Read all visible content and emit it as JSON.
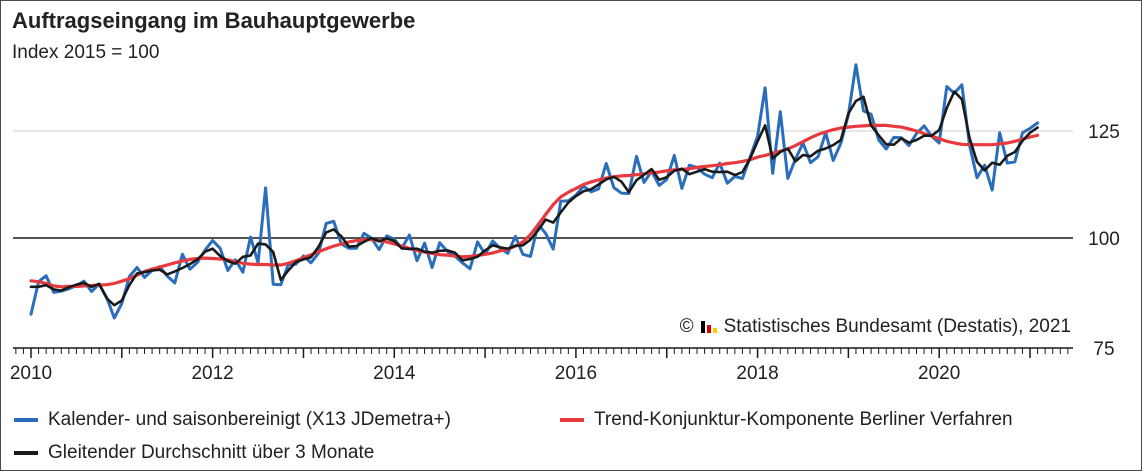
{
  "title": "Auftragseingang im Bauhauptgewerbe",
  "subtitle": "Index 2015 = 100",
  "copyright": {
    "symbol": "©",
    "text": "Statistisches Bundesamt (Destatis), 2021",
    "logo_icon": "destatis-logo-icon",
    "logo_colors": [
      "#000000",
      "#dd0000",
      "#ffcc00"
    ]
  },
  "chart_data": {
    "type": "line",
    "x_start": "2010-01",
    "x_step": "month",
    "x_ticks": [
      "2010",
      "2012",
      "2014",
      "2016",
      "2018",
      "2020"
    ],
    "xlim": [
      "2010-01",
      "2020-12"
    ],
    "y_ticks": [
      75,
      100,
      125
    ],
    "ylim": [
      75,
      145
    ],
    "reference_line": 100,
    "grid": "horizontal",
    "legend_position": "bottom",
    "series": [
      {
        "name": "Kalender- und saisonbereinigt (X13 JDemetra+)",
        "color": "#2a6ebb",
        "values": [
          82.2,
          89.8,
          91.2,
          87.3,
          87.6,
          88.1,
          88.9,
          89.9,
          87.5,
          89.2,
          86.1,
          81.3,
          84.7,
          91.0,
          93.1,
          90.8,
          92.4,
          93.3,
          91.1,
          89.5,
          96.2,
          92.7,
          94.3,
          97.2,
          99.4,
          97.6,
          92.4,
          94.9,
          92.0,
          100.2,
          94.2,
          111.7,
          89.2,
          89.1,
          93.8,
          93.9,
          95.8,
          94.2,
          96.5,
          103.4,
          103.9,
          98.6,
          97.6,
          97.6,
          101.1,
          99.9,
          97.3,
          100.5,
          99.7,
          97.6,
          100.7,
          94.7,
          98.8,
          93.1,
          98.9,
          96.9,
          95.8,
          94.2,
          92.8,
          99.1,
          96.2,
          99.3,
          97.6,
          96.4,
          100.4,
          96.2,
          95.7,
          103.2,
          101.1,
          97.4,
          108.6,
          108.7,
          110.0,
          112.1,
          110.8,
          111.5,
          117.4,
          111.8,
          110.5,
          110.4,
          119.1,
          113.0,
          115.6,
          112.3,
          113.7,
          119.3,
          111.6,
          117.0,
          116.5,
          114.9,
          114.1,
          117.5,
          112.8,
          114.4,
          113.9,
          118.8,
          123.8,
          135.1,
          115.1,
          129.5,
          113.9,
          118.4,
          122.2,
          117.6,
          119.0,
          124.6,
          118.1,
          122.1,
          128.8,
          140.5,
          129.7,
          128.9,
          122.9,
          120.8,
          123.5,
          123.4,
          121.6,
          124.4,
          126.2,
          123.8,
          122.2,
          135.4,
          133.8,
          135.8,
          121.7,
          114.1,
          117.0,
          111.2,
          124.6,
          117.5,
          117.8,
          124.6,
          125.6,
          126.9
        ]
      },
      {
        "name": "Gleitender Durchschnitt über 3 Monate",
        "color": "#1a1a1a",
        "values": [
          88.6,
          88.6,
          89.0,
          88.0,
          87.7,
          88.5,
          89.1,
          89.5,
          88.6,
          89.3,
          85.9,
          84.3,
          85.4,
          89.0,
          91.7,
          92.0,
          92.4,
          92.6,
          91.5,
          92.2,
          93.0,
          93.9,
          95.0,
          96.8,
          97.5,
          95.8,
          94.6,
          94.0,
          95.6,
          95.9,
          98.7,
          98.5,
          96.7,
          90.2,
          92.4,
          94.4,
          95.0,
          95.5,
          98.0,
          101.3,
          102.0,
          100.4,
          98.0,
          98.1,
          99.1,
          100.0,
          99.2,
          99.9,
          99.3,
          97.6,
          97.4,
          97.5,
          96.8,
          96.6,
          97.0,
          97.1,
          96.6,
          94.8,
          95.1,
          95.6,
          97.1,
          98.3,
          97.8,
          97.5,
          98.2,
          98.3,
          99.6,
          101.8,
          104.3,
          103.6,
          106.0,
          108.3,
          109.8,
          110.9,
          111.4,
          112.5,
          113.7,
          114.3,
          113.2,
          110.7,
          113.5,
          114.8,
          116.1,
          113.6,
          114.2,
          115.7,
          116.2,
          114.9,
          115.5,
          116.1,
          115.5,
          115.4,
          115.5,
          114.7,
          115.4,
          118.5,
          122.6,
          126.3,
          118.6,
          120.1,
          120.9,
          117.9,
          119.4,
          119.1,
          120.4,
          120.9,
          121.7,
          122.9,
          129.1,
          132.0,
          133.0,
          126.3,
          124.0,
          121.9,
          121.8,
          123.3,
          122.3,
          122.9,
          123.9,
          123.9,
          125.2,
          130.4,
          134.2,
          132.4,
          123.4,
          117.8,
          115.8,
          117.6,
          117.1,
          119.2,
          120.1,
          122.7,
          124.6,
          125.8
        ]
      },
      {
        "name": "Trend-Konjunktur-Komponente Berliner Verfahren",
        "color": "#e8393f",
        "values": [
          90.0,
          89.8,
          89.4,
          88.8,
          88.6,
          88.7,
          88.7,
          88.8,
          88.9,
          89.0,
          89.1,
          89.4,
          89.9,
          90.5,
          91.3,
          92.2,
          92.7,
          93.2,
          93.7,
          94.2,
          94.6,
          95.0,
          95.2,
          95.3,
          95.2,
          95.1,
          94.9,
          94.5,
          94.1,
          93.9,
          93.8,
          93.8,
          93.7,
          93.7,
          94.1,
          94.7,
          95.4,
          96.1,
          96.8,
          97.5,
          98.1,
          98.6,
          99.1,
          99.4,
          99.6,
          99.6,
          99.4,
          99.1,
          98.6,
          98.1,
          97.6,
          97.1,
          96.7,
          96.4,
          96.1,
          96.0,
          95.8,
          95.6,
          95.7,
          95.9,
          96.2,
          96.5,
          97.0,
          97.4,
          98.1,
          99.1,
          100.8,
          103.1,
          105.5,
          107.8,
          109.6,
          110.7,
          111.6,
          112.5,
          113.1,
          113.6,
          114.0,
          114.3,
          114.5,
          114.6,
          114.8,
          115.0,
          115.3,
          115.4,
          115.7,
          115.9,
          116.0,
          116.2,
          116.5,
          116.7,
          116.9,
          117.1,
          117.4,
          117.6,
          117.9,
          118.3,
          118.9,
          119.3,
          119.8,
          120.3,
          120.8,
          121.6,
          122.5,
          123.4,
          124.2,
          124.8,
          125.3,
          125.7,
          125.9,
          126.1,
          126.2,
          126.3,
          126.3,
          126.3,
          126.1,
          125.9,
          125.5,
          125.0,
          124.4,
          123.8,
          123.2,
          122.6,
          122.2,
          121.9,
          121.8,
          121.8,
          121.8,
          121.8,
          122.0,
          122.2,
          122.6,
          123.1,
          123.6,
          124.0
        ]
      }
    ]
  }
}
